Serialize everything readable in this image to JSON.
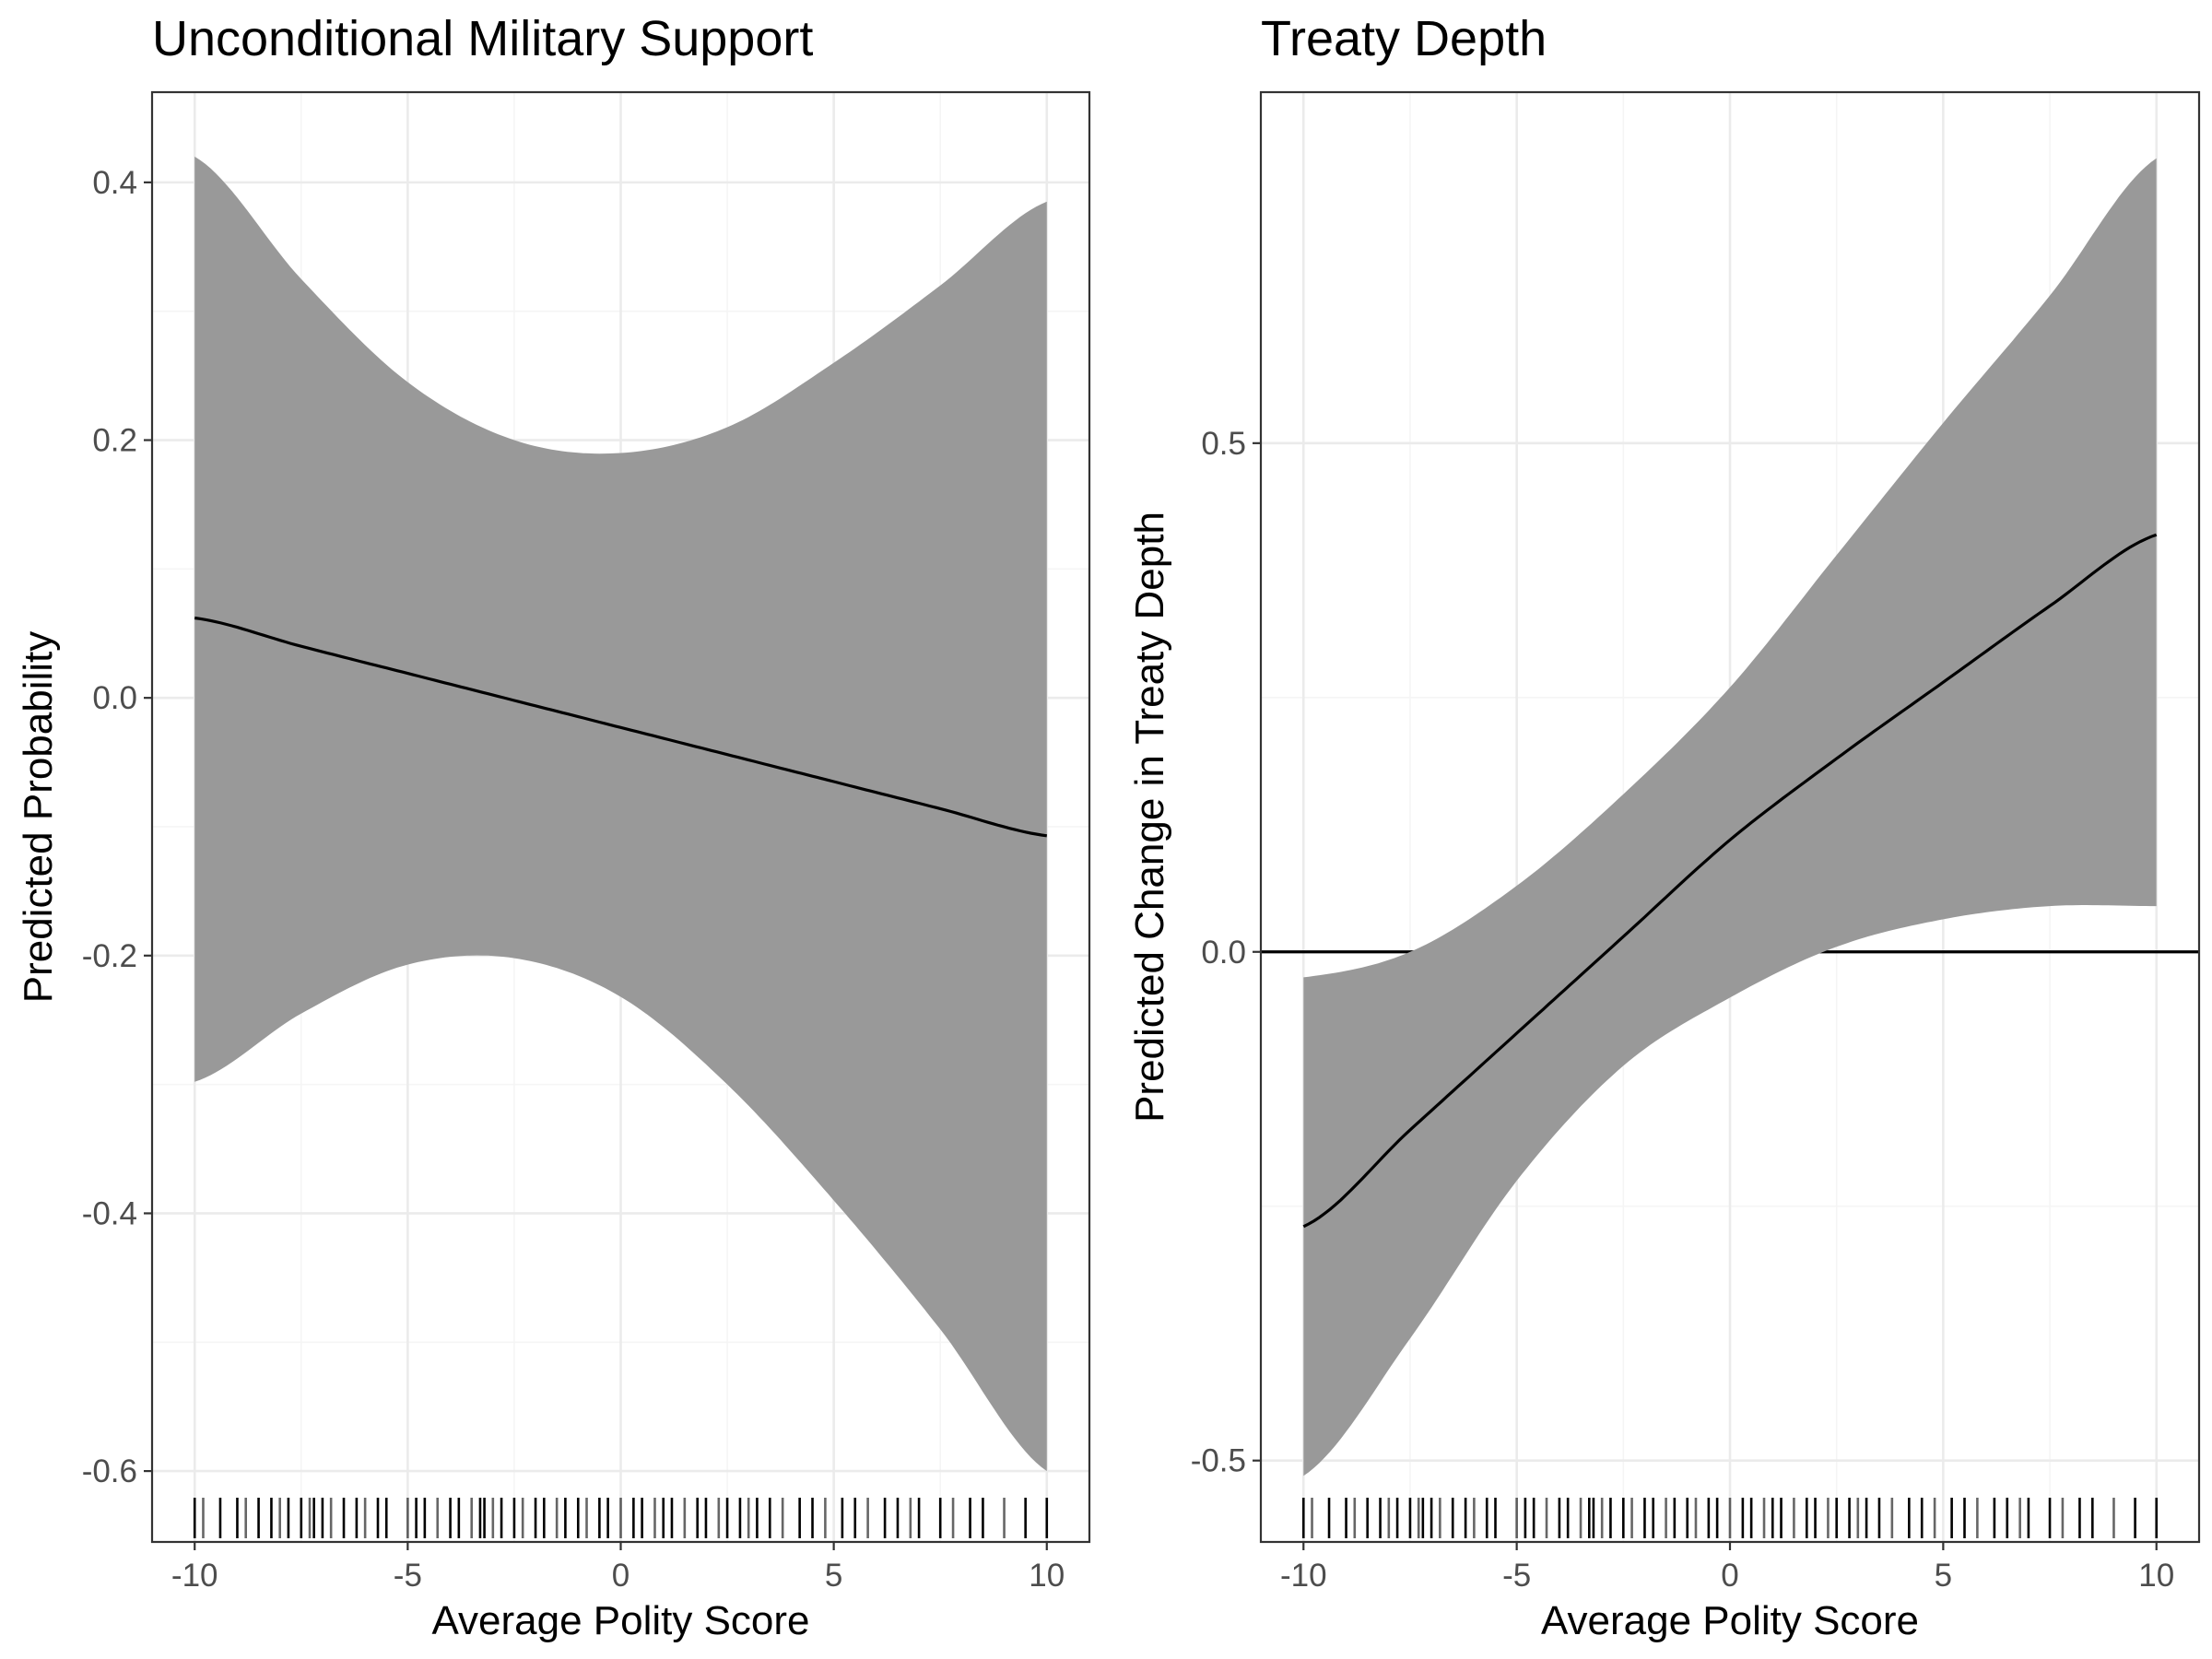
{
  "chart_data": [
    {
      "type": "line",
      "title": "Unconditional Military Support",
      "xlabel": "Average Polity Score",
      "ylabel": "Predicted Probability",
      "xlim": [
        -11,
        11
      ],
      "ylim": [
        -0.655,
        0.47
      ],
      "x_ticks": [
        -10,
        -5,
        0,
        5,
        10
      ],
      "x_tick_labels": [
        "-10",
        "-5",
        "0",
        "5",
        "10"
      ],
      "y_ticks": [
        -0.6,
        -0.4,
        -0.2,
        0.0,
        0.2,
        0.4
      ],
      "y_tick_labels": [
        "-0.6",
        "-0.4",
        "-0.2",
        "0.0",
        "0.2",
        "0.4"
      ],
      "grid": true,
      "series": [
        {
          "x": [
            -10,
            -7.5,
            -5,
            -2.5,
            0,
            2.5,
            5,
            7.5,
            10
          ],
          "y": [
            0.062,
            0.04,
            0.019,
            -0.002,
            -0.023,
            -0.044,
            -0.065,
            -0.086,
            -0.107
          ],
          "ci_lower": [
            -0.298,
            -0.245,
            -0.207,
            -0.202,
            -0.232,
            -0.3,
            -0.39,
            -0.49,
            -0.6
          ],
          "ci_upper": [
            0.42,
            0.325,
            0.245,
            0.2,
            0.19,
            0.21,
            0.26,
            0.32,
            0.385
          ]
        }
      ],
      "rug": [
        -10,
        -9.8,
        -9.4,
        -9,
        -8.8,
        -8.5,
        -8.2,
        -8,
        -7.8,
        -7.5,
        -7.3,
        -7.2,
        -7,
        -6.8,
        -6.5,
        -6.2,
        -6,
        -5.7,
        -5.5,
        -5,
        -4.8,
        -4.6,
        -4.3,
        -4,
        -3.8,
        -3.5,
        -3.3,
        -3.2,
        -3,
        -2.8,
        -2.5,
        -2.3,
        -2,
        -1.8,
        -1.5,
        -1.3,
        -1,
        -0.8,
        -0.5,
        -0.3,
        0,
        0.3,
        0.5,
        0.8,
        1,
        1.2,
        1.5,
        1.8,
        2,
        2.3,
        2.5,
        2.8,
        3,
        3.2,
        3.5,
        3.8,
        4.2,
        4.5,
        4.8,
        5.2,
        5.5,
        5.8,
        6.2,
        6.5,
        6.8,
        7,
        7.5,
        7.8,
        8.2,
        8.5,
        9,
        9.5,
        10
      ]
    },
    {
      "type": "line",
      "title": "Treaty Depth",
      "xlabel": "Average Polity Score",
      "ylabel": "Predicted Change in Treaty Depth",
      "xlim": [
        -11,
        11
      ],
      "ylim": [
        -0.58,
        0.845
      ],
      "x_ticks": [
        -10,
        -5,
        0,
        5,
        10
      ],
      "x_tick_labels": [
        "-10",
        "-5",
        "0",
        "5",
        "10"
      ],
      "y_ticks": [
        -0.5,
        0.0,
        0.5
      ],
      "y_tick_labels": [
        "-0.5",
        "0.0",
        "0.5"
      ],
      "grid": true,
      "hline": 0.0,
      "series": [
        {
          "x": [
            -10,
            -7.5,
            -5,
            -2.5,
            0,
            2.5,
            5,
            7.5,
            10
          ],
          "y": [
            -0.27,
            -0.175,
            -0.08,
            0.015,
            0.11,
            0.19,
            0.265,
            0.34,
            0.41
          ],
          "ci_lower": [
            -0.515,
            -0.38,
            -0.225,
            -0.112,
            -0.045,
            0.005,
            0.032,
            0.045,
            0.045
          ],
          "ci_upper": [
            -0.025,
            0.0,
            0.065,
            0.155,
            0.26,
            0.39,
            0.52,
            0.645,
            0.78
          ]
        }
      ],
      "rug": [
        -10,
        -9.8,
        -9.4,
        -9,
        -8.8,
        -8.5,
        -8.2,
        -8,
        -7.8,
        -7.5,
        -7.3,
        -7.2,
        -7,
        -6.8,
        -6.5,
        -6.2,
        -6,
        -5.7,
        -5.5,
        -5,
        -4.8,
        -4.6,
        -4.3,
        -4,
        -3.8,
        -3.5,
        -3.3,
        -3.2,
        -3,
        -2.8,
        -2.5,
        -2.3,
        -2,
        -1.8,
        -1.5,
        -1.3,
        -1,
        -0.8,
        -0.5,
        -0.3,
        0,
        0.3,
        0.5,
        0.8,
        1,
        1.2,
        1.5,
        1.8,
        2,
        2.3,
        2.5,
        2.8,
        3,
        3.2,
        3.5,
        3.8,
        4.2,
        4.5,
        4.8,
        5.2,
        5.5,
        5.8,
        6.2,
        6.5,
        6.8,
        7,
        7.5,
        7.8,
        8.2,
        8.5,
        9,
        9.5,
        10
      ]
    }
  ]
}
